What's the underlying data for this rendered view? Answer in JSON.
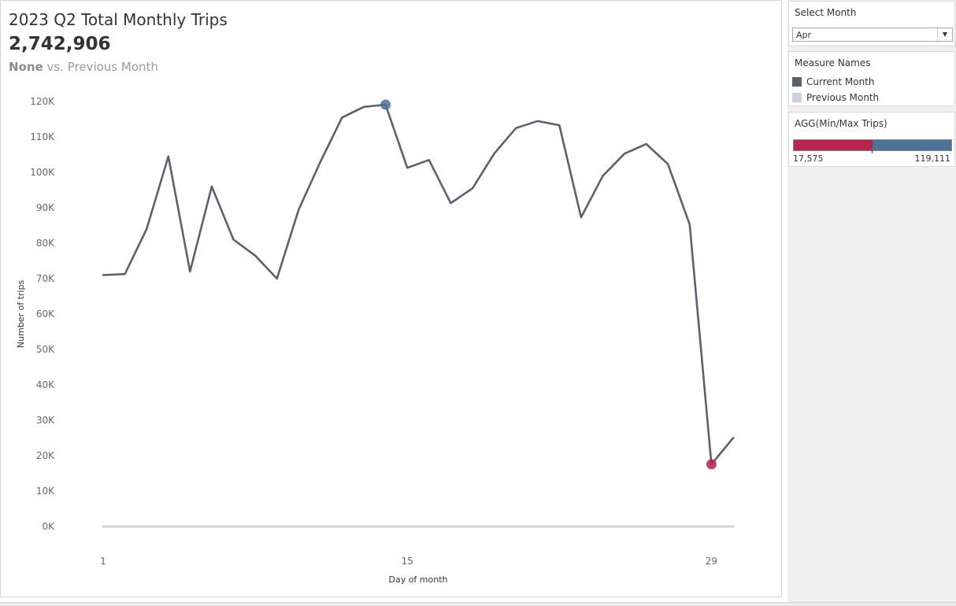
{
  "header": {
    "title": "2023 Q2 Total Monthly Trips",
    "total": "2,742,906",
    "compare_value": "None",
    "compare_text": " vs. Previous Month"
  },
  "filter": {
    "title": "Select Month",
    "selected": "Apr"
  },
  "legend": {
    "title": "Measure Names",
    "items": [
      {
        "label": "Current Month",
        "color": "#5b626e"
      },
      {
        "label": "Previous Month",
        "color": "#cdd3db"
      }
    ]
  },
  "minmax": {
    "title": "AGG(Min/Max Trips)",
    "min_label": "17,575",
    "max_label": "119,111",
    "min_color": "#b82350",
    "max_color": "#4d7298"
  },
  "chart_data": {
    "type": "line",
    "xlabel": "Day of month",
    "ylabel": "Number of trips",
    "x_ticks": [
      1,
      15,
      29
    ],
    "y_ticks": [
      "0K",
      "10K",
      "20K",
      "30K",
      "40K",
      "50K",
      "60K",
      "70K",
      "80K",
      "90K",
      "100K",
      "110K",
      "120K"
    ],
    "xlim": [
      1,
      30
    ],
    "ylim": [
      0,
      120000
    ],
    "x": [
      1,
      2,
      3,
      4,
      5,
      6,
      7,
      8,
      9,
      10,
      11,
      12,
      13,
      14,
      15,
      16,
      17,
      18,
      19,
      20,
      21,
      22,
      23,
      24,
      25,
      26,
      27,
      28,
      29,
      30
    ],
    "series": [
      {
        "name": "Current Month",
        "color": "#5b626e",
        "values": [
          71000,
          71300,
          84000,
          104500,
          72000,
          96000,
          81000,
          76500,
          70000,
          89500,
          103000,
          115500,
          118500,
          119111,
          101300,
          103500,
          91300,
          95500,
          105300,
          112500,
          114500,
          113300,
          87300,
          99000,
          105300,
          108000,
          102300,
          85300,
          17575,
          25000
        ]
      },
      {
        "name": "Previous Month",
        "color": "#cdd3db",
        "values": [
          0,
          0,
          0,
          0,
          0,
          0,
          0,
          0,
          0,
          0,
          0,
          0,
          0,
          0,
          0,
          0,
          0,
          0,
          0,
          0,
          0,
          0,
          0,
          0,
          0,
          0,
          0,
          0,
          0,
          0
        ]
      }
    ],
    "highlights": [
      {
        "type": "max",
        "x": 14,
        "y": 119111,
        "color": "#4d7298"
      },
      {
        "type": "min",
        "x": 29,
        "y": 17575,
        "color": "#b82350"
      }
    ]
  }
}
